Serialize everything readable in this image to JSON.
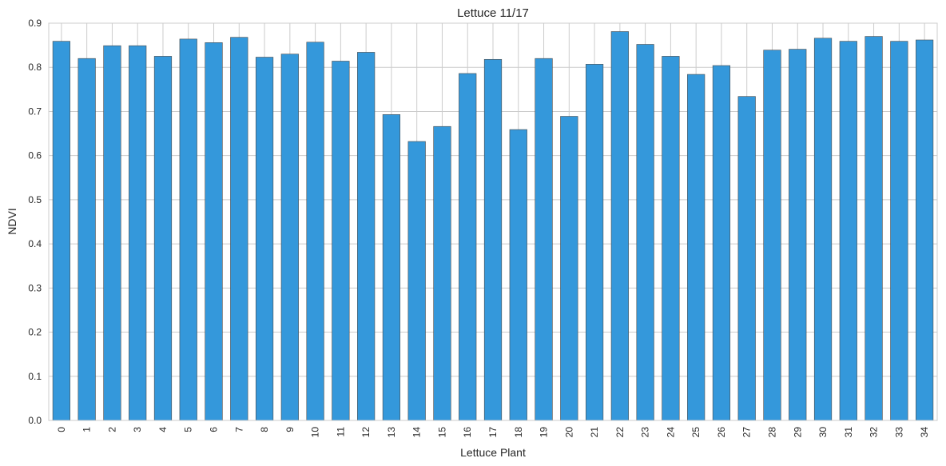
{
  "chart_data": {
    "type": "bar",
    "title": "Lettuce 11/17",
    "xlabel": "Lettuce Plant",
    "ylabel": "NDVI",
    "categories": [
      "0",
      "1",
      "2",
      "3",
      "4",
      "5",
      "6",
      "7",
      "8",
      "9",
      "10",
      "11",
      "12",
      "13",
      "14",
      "15",
      "16",
      "17",
      "18",
      "19",
      "20",
      "21",
      "22",
      "23",
      "24",
      "25",
      "26",
      "27",
      "28",
      "29",
      "30",
      "31",
      "32",
      "33",
      "34"
    ],
    "values": [
      0.859,
      0.82,
      0.849,
      0.849,
      0.825,
      0.864,
      0.856,
      0.868,
      0.823,
      0.83,
      0.857,
      0.814,
      0.834,
      0.693,
      0.632,
      0.666,
      0.786,
      0.818,
      0.659,
      0.82,
      0.689,
      0.807,
      0.881,
      0.852,
      0.825,
      0.784,
      0.804,
      0.734,
      0.839,
      0.841,
      0.866,
      0.859,
      0.87,
      0.859,
      0.862
    ],
    "ylim": [
      0,
      0.9
    ],
    "yticks": [
      "0.0",
      "0.1",
      "0.2",
      "0.3",
      "0.4",
      "0.5",
      "0.6",
      "0.7",
      "0.8",
      "0.9"
    ],
    "grid": true,
    "bar_color": "#3498db",
    "edge_color": "#4a4a4a"
  }
}
